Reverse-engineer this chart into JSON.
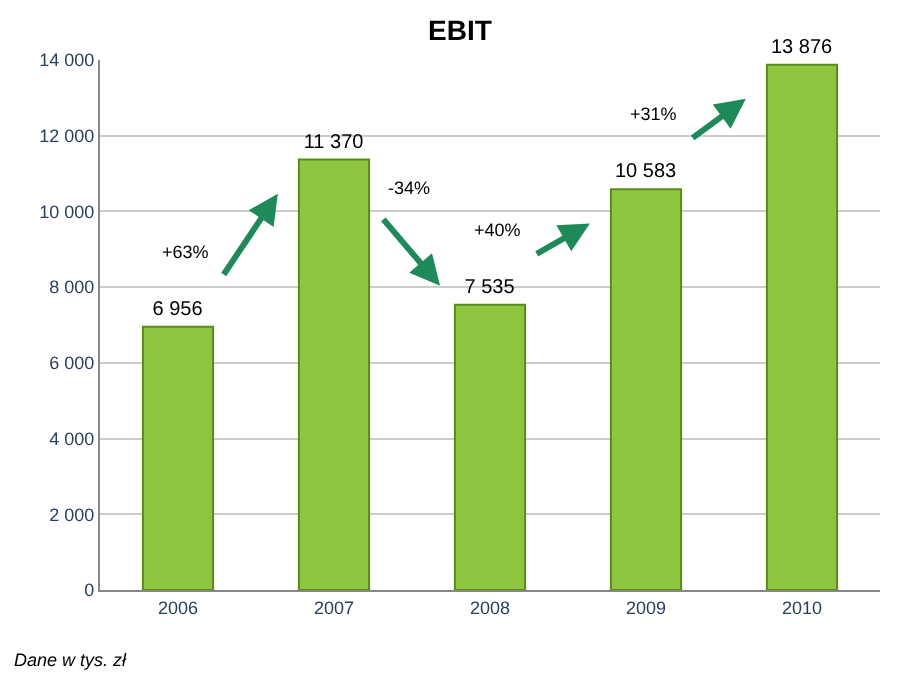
{
  "chart_data": {
    "type": "bar",
    "title": "EBIT",
    "categories": [
      "2006",
      "2007",
      "2008",
      "2009",
      "2010"
    ],
    "values": [
      6956,
      11370,
      7535,
      10583,
      13876
    ],
    "value_labels": [
      "6 956",
      "11 370",
      "7 535",
      "10 583",
      "13 876"
    ],
    "color": "#8cc63f",
    "ylim": [
      0,
      14000
    ],
    "yticks": [
      0,
      {
        "value": 2000,
        "label": "2 000"
      },
      {
        "value": 4000,
        "label": "4 000"
      },
      {
        "value": 6000,
        "label": "6 000"
      },
      {
        "value": 8000,
        "label": "8 000"
      },
      {
        "value": 10000,
        "label": "10 000"
      },
      {
        "value": 12000,
        "label": "12 000"
      },
      {
        "value": 14000,
        "label": "14 000"
      }
    ],
    "grid": "y",
    "annotations": [
      "+63%",
      "-34%",
      "+40%",
      "+31%",
      "Dane w tys. zł"
    ]
  }
}
